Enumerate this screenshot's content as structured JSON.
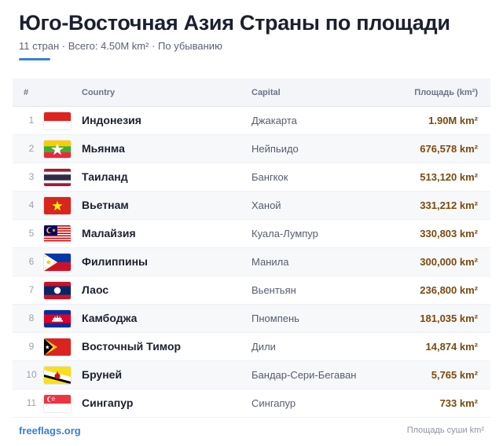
{
  "header": {
    "title": "Юго-Восточная Азия Страны по площади",
    "subtitle": "11 стран · Всего: 4.50M km² · По убыванию"
  },
  "table": {
    "columns": {
      "num": "#",
      "country": "Country",
      "capital": "Capital",
      "area": "Площадь (km²)"
    },
    "rows": [
      {
        "num": "1",
        "country": "Индонезия",
        "capital": "Джакарта",
        "area": "1.90M km²",
        "flag": "indonesia-flag-icon"
      },
      {
        "num": "2",
        "country": "Мьянма",
        "capital": "Нейпьидо",
        "area": "676,578 km²",
        "flag": "myanmar-flag-icon"
      },
      {
        "num": "3",
        "country": "Таиланд",
        "capital": "Бангкок",
        "area": "513,120 km²",
        "flag": "thailand-flag-icon"
      },
      {
        "num": "4",
        "country": "Вьетнам",
        "capital": "Ханой",
        "area": "331,212 km²",
        "flag": "vietnam-flag-icon"
      },
      {
        "num": "5",
        "country": "Малайзия",
        "capital": "Куала-Лумпур",
        "area": "330,803 km²",
        "flag": "malaysia-flag-icon"
      },
      {
        "num": "6",
        "country": "Филиппины",
        "capital": "Манила",
        "area": "300,000 km²",
        "flag": "philippines-flag-icon"
      },
      {
        "num": "7",
        "country": "Лаос",
        "capital": "Вьентьян",
        "area": "236,800 km²",
        "flag": "laos-flag-icon"
      },
      {
        "num": "8",
        "country": "Камбоджа",
        "capital": "Пномпень",
        "area": "181,035 km²",
        "flag": "cambodia-flag-icon"
      },
      {
        "num": "9",
        "country": "Восточный Тимор",
        "capital": "Дили",
        "area": "14,874 km²",
        "flag": "east-timor-flag-icon"
      },
      {
        "num": "10",
        "country": "Бруней",
        "capital": "Бандар-Сери-Бегаван",
        "area": "5,765 km²",
        "flag": "brunei-flag-icon"
      },
      {
        "num": "11",
        "country": "Сингапур",
        "capital": "Сингапур",
        "area": "733 km²",
        "flag": "singapore-flag-icon"
      }
    ]
  },
  "footer": {
    "brand": "freeflags.org",
    "note": "Площадь суши km²"
  },
  "colors": {
    "accent": "#3b7ddd",
    "area_text": "#7a4a10",
    "title_text": "#1b2030"
  }
}
